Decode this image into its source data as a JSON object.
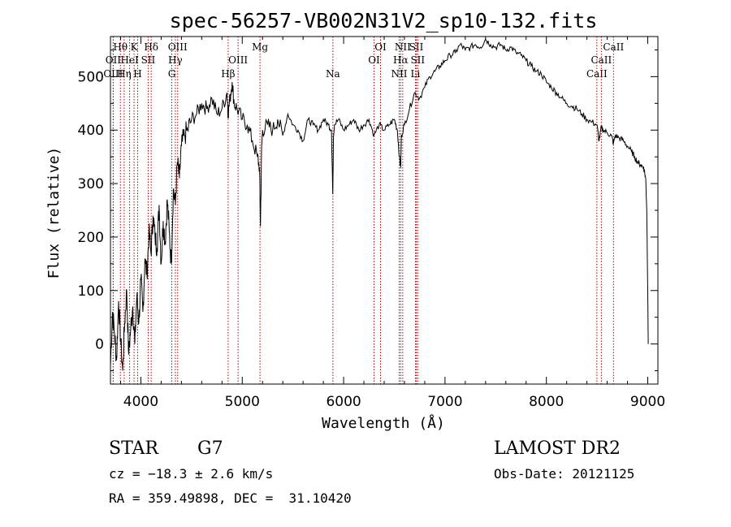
{
  "title": "spec-56257-VB002N31V2_sp10-132.fits",
  "chart_data": {
    "type": "line",
    "xlabel": "Wavelength (Å)",
    "ylabel": "Flux (relative)",
    "xlim": [
      3700,
      9100
    ],
    "ylim": [
      -75,
      575
    ],
    "x_ticks": [
      4000,
      5000,
      6000,
      7000,
      8000,
      9000
    ],
    "y_ticks": [
      0,
      100,
      200,
      300,
      400,
      500
    ],
    "series": [
      {
        "x": [
          3700,
          3720,
          3740,
          3760,
          3780,
          3800,
          3820,
          3840,
          3860,
          3880,
          3900,
          3920,
          3940,
          3960,
          3980,
          4000,
          4020,
          4040,
          4060,
          4080,
          4100,
          4120,
          4140,
          4160,
          4180,
          4200,
          4220,
          4240,
          4260,
          4280,
          4300,
          4320,
          4340,
          4360,
          4380,
          4400,
          4430,
          4460,
          4500,
          4550,
          4600,
          4650,
          4700,
          4750,
          4800,
          4850,
          4860,
          4880,
          4900,
          4920,
          4950,
          5000,
          5050,
          5100,
          5150,
          5170,
          5180,
          5190,
          5200,
          5250,
          5300,
          5350,
          5400,
          5450,
          5500,
          5550,
          5600,
          5650,
          5700,
          5750,
          5800,
          5850,
          5880,
          5893,
          5900,
          5910,
          5950,
          6000,
          6050,
          6100,
          6150,
          6200,
          6250,
          6300,
          6350,
          6400,
          6450,
          6500,
          6530,
          6550,
          6563,
          6570,
          6600,
          6650,
          6700,
          6750,
          6800,
          6850,
          6900,
          6950,
          7000,
          7050,
          7100,
          7150,
          7200,
          7250,
          7300,
          7350,
          7400,
          7450,
          7500,
          7550,
          7600,
          7650,
          7700,
          7750,
          7800,
          7850,
          7900,
          7950,
          8000,
          8050,
          8100,
          8150,
          8200,
          8250,
          8300,
          8350,
          8400,
          8450,
          8498,
          8520,
          8542,
          8560,
          8600,
          8640,
          8662,
          8680,
          8720,
          8760,
          8800,
          8840,
          8870,
          8900,
          8930,
          8960,
          8980,
          8990,
          9000,
          9005
        ],
        "y": [
          -40,
          60,
          20,
          -30,
          80,
          10,
          -50,
          40,
          100,
          -20,
          30,
          70,
          0,
          90,
          40,
          120,
          60,
          160,
          130,
          210,
          170,
          240,
          200,
          180,
          260,
          150,
          230,
          190,
          270,
          210,
          150,
          290,
          260,
          340,
          310,
          370,
          390,
          400,
          420,
          430,
          450,
          440,
          460,
          430,
          440,
          470,
          430,
          460,
          490,
          450,
          440,
          420,
          410,
          380,
          350,
          330,
          220,
          360,
          400,
          410,
          400,
          420,
          390,
          430,
          410,
          400,
          380,
          420,
          410,
          400,
          420,
          410,
          400,
          280,
          390,
          410,
          420,
          400,
          410,
          420,
          400,
          410,
          420,
          390,
          410,
          400,
          410,
          420,
          400,
          350,
          330,
          390,
          410,
          440,
          470,
          460,
          480,
          500,
          510,
          520,
          530,
          540,
          545,
          560,
          550,
          555,
          560,
          555,
          570,
          560,
          555,
          560,
          550,
          555,
          545,
          540,
          530,
          520,
          510,
          505,
          490,
          480,
          470,
          460,
          450,
          445,
          440,
          430,
          420,
          415,
          410,
          380,
          405,
          400,
          395,
          390,
          375,
          390,
          385,
          380,
          370,
          360,
          350,
          340,
          335,
          330,
          310,
          250,
          100,
          0
        ]
      }
    ],
    "lines": [
      {
        "name": "Hθ",
        "wl": 3798,
        "row": 1
      },
      {
        "name": "OII",
        "wl": 3727,
        "row": 2
      },
      {
        "name": "OIII",
        "wl": 3727,
        "row": 3
      },
      {
        "name": "Hη",
        "wl": 3835,
        "row": 3
      },
      {
        "name": "HeI",
        "wl": 3889,
        "row": 2
      },
      {
        "name": "K",
        "wl": 3933,
        "row": 1
      },
      {
        "name": "H",
        "wl": 3968,
        "row": 3
      },
      {
        "name": "SII",
        "wl": 4072,
        "row": 2
      },
      {
        "name": "Hδ",
        "wl": 4102,
        "row": 1
      },
      {
        "name": "OIII",
        "wl": 4363,
        "row": 1
      },
      {
        "name": "Hγ",
        "wl": 4340,
        "row": 2
      },
      {
        "name": "G",
        "wl": 4305,
        "row": 3
      },
      {
        "name": "Hβ",
        "wl": 4861,
        "row": 3
      },
      {
        "name": "OIII",
        "wl": 4959,
        "row": 2
      },
      {
        "name": "Mg",
        "wl": 5175,
        "row": 1
      },
      {
        "name": "Na",
        "wl": 5894,
        "row": 3
      },
      {
        "name": "OI",
        "wl": 6300,
        "row": 2
      },
      {
        "name": "OI",
        "wl": 6364,
        "row": 1
      },
      {
        "name": "NII",
        "wl": 6548,
        "row": 3
      },
      {
        "name": "Hα",
        "wl": 6563,
        "row": 2
      },
      {
        "name": "NII",
        "wl": 6583,
        "row": 1
      },
      {
        "name": "SII",
        "wl": 6717,
        "row": 1
      },
      {
        "name": "SII",
        "wl": 6731,
        "row": 2
      },
      {
        "name": "Li",
        "wl": 6708,
        "row": 3
      },
      {
        "name": "CaII",
        "wl": 8498,
        "row": 3
      },
      {
        "name": "CaII",
        "wl": 8542,
        "row": 2
      },
      {
        "name": "CaII",
        "wl": 8662,
        "row": 1
      }
    ],
    "line_color": "#b00000"
  },
  "info": {
    "class_label": "STAR",
    "subclass": "G7",
    "survey": "LAMOST DR2",
    "cz": "cz = −18.3 ± 2.6 km/s",
    "obs_date": "Obs-Date: 20121125",
    "coords": "RA = 359.49898, DEC =  31.10420"
  }
}
